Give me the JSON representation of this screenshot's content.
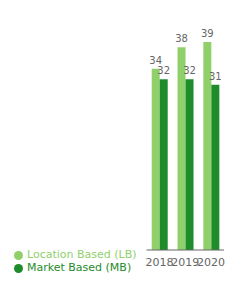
{
  "chart_data": {
    "type": "bar",
    "categories": [
      "2018",
      "2019",
      "2020"
    ],
    "series": [
      {
        "name": "Location Based (LB)",
        "color": "#90d06a",
        "values": [
          34,
          38,
          39
        ]
      },
      {
        "name": "Market Based (MB)",
        "color": "#1e8c2a",
        "values": [
          32,
          32,
          31
        ]
      }
    ],
    "ylim": [
      0,
      42
    ],
    "data_labels": true,
    "tick_labels": "x",
    "legend": "lower left",
    "grid": false
  }
}
